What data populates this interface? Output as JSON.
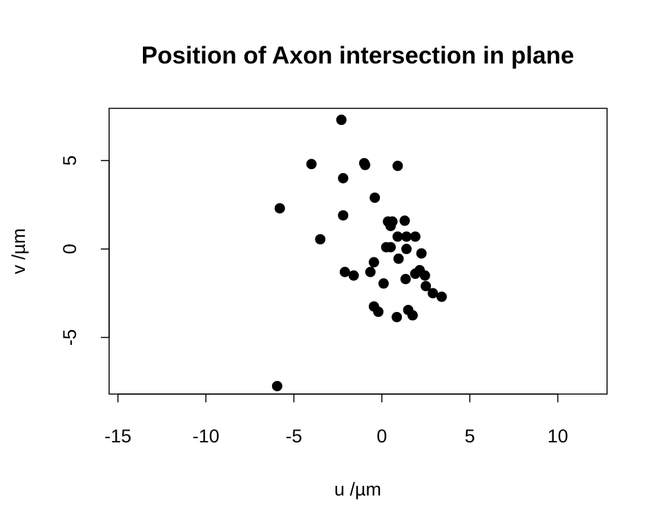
{
  "chart_data": {
    "type": "scatter",
    "title": "Position of Axon intersection in plane",
    "xlabel": "u /µm",
    "ylabel": "v /µm",
    "xlim": [
      -15.5,
      12.8
    ],
    "ylim": [
      -8.2,
      7.95
    ],
    "x_ticks": [
      -15,
      -10,
      -5,
      0,
      5,
      10
    ],
    "x_tick_labels": [
      "-15",
      "-10",
      "-5",
      "0",
      "5",
      "10"
    ],
    "y_ticks": [
      -5,
      0,
      5
    ],
    "y_tick_labels": [
      "-5",
      "0",
      "5"
    ],
    "grid": false,
    "legend": "none",
    "marker_color": "#000000",
    "points": [
      {
        "x": -2.3,
        "y": 7.3
      },
      {
        "x": -4.0,
        "y": 4.8
      },
      {
        "x": -1.0,
        "y": 4.85
      },
      {
        "x": -0.95,
        "y": 4.75
      },
      {
        "x": 0.9,
        "y": 4.7
      },
      {
        "x": -2.2,
        "y": 4.0
      },
      {
        "x": -0.4,
        "y": 2.9
      },
      {
        "x": -5.8,
        "y": 2.3
      },
      {
        "x": -2.2,
        "y": 1.9
      },
      {
        "x": 0.35,
        "y": 1.55
      },
      {
        "x": 0.6,
        "y": 1.55
      },
      {
        "x": 1.3,
        "y": 1.6
      },
      {
        "x": 0.5,
        "y": 1.3
      },
      {
        "x": 0.9,
        "y": 0.7
      },
      {
        "x": 1.4,
        "y": 0.7
      },
      {
        "x": 1.9,
        "y": 0.7
      },
      {
        "x": -3.5,
        "y": 0.55
      },
      {
        "x": 0.25,
        "y": 0.1
      },
      {
        "x": 0.5,
        "y": 0.1
      },
      {
        "x": 1.4,
        "y": 0.0
      },
      {
        "x": 2.25,
        "y": -0.25
      },
      {
        "x": 0.95,
        "y": -0.55
      },
      {
        "x": -0.45,
        "y": -0.75
      },
      {
        "x": 2.15,
        "y": -1.2
      },
      {
        "x": 1.9,
        "y": -1.4
      },
      {
        "x": -2.1,
        "y": -1.3
      },
      {
        "x": -0.65,
        "y": -1.3
      },
      {
        "x": -1.6,
        "y": -1.5
      },
      {
        "x": 2.45,
        "y": -1.5
      },
      {
        "x": 1.35,
        "y": -1.7
      },
      {
        "x": 0.1,
        "y": -1.95
      },
      {
        "x": 2.5,
        "y": -2.1
      },
      {
        "x": 2.9,
        "y": -2.5
      },
      {
        "x": 3.4,
        "y": -2.7
      },
      {
        "x": -0.45,
        "y": -3.25
      },
      {
        "x": -0.2,
        "y": -3.55
      },
      {
        "x": 1.5,
        "y": -3.45
      },
      {
        "x": 0.85,
        "y": -3.85
      },
      {
        "x": 1.75,
        "y": -3.75
      },
      {
        "x": -5.95,
        "y": -7.75
      }
    ]
  }
}
